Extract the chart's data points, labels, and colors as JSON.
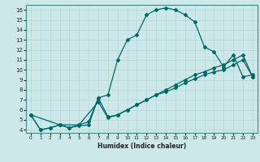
{
  "xlabel": "Humidex (Indice chaleur)",
  "xlim": [
    -0.5,
    23.5
  ],
  "ylim": [
    3.7,
    16.5
  ],
  "yticks": [
    4,
    5,
    6,
    7,
    8,
    9,
    10,
    11,
    12,
    13,
    14,
    15,
    16
  ],
  "xticks": [
    0,
    1,
    2,
    3,
    4,
    5,
    6,
    7,
    8,
    9,
    10,
    11,
    12,
    13,
    14,
    15,
    16,
    17,
    18,
    19,
    20,
    21,
    22,
    23
  ],
  "bg_color": "#cde8e8",
  "line_color": "#006868",
  "grid_color": "#b8d8d8",
  "curve1_x": [
    0,
    1,
    2,
    3,
    4,
    5,
    6,
    7,
    8,
    9,
    10,
    11,
    12,
    13,
    14,
    15,
    16,
    17,
    18,
    19,
    20,
    21,
    22,
    23
  ],
  "curve1_y": [
    5.5,
    4.0,
    4.2,
    4.5,
    4.2,
    4.4,
    4.5,
    7.2,
    7.5,
    11.0,
    13.0,
    13.5,
    15.5,
    16.0,
    16.2,
    16.0,
    15.5,
    14.8,
    12.3,
    11.8,
    10.3,
    11.5,
    9.3,
    9.5
  ],
  "curve2_x": [
    0,
    3,
    5,
    7,
    8,
    9,
    10,
    11,
    12,
    13,
    14,
    15,
    16,
    17,
    18,
    19,
    20,
    21,
    22,
    23
  ],
  "curve2_y": [
    5.5,
    4.5,
    4.5,
    6.8,
    5.2,
    5.5,
    6.0,
    6.5,
    7.0,
    7.5,
    8.0,
    8.5,
    9.0,
    9.5,
    9.8,
    10.2,
    10.5,
    11.0,
    11.5,
    9.3
  ],
  "curve3_x": [
    0,
    1,
    2,
    3,
    4,
    5,
    6,
    7,
    8,
    9,
    10,
    11,
    12,
    13,
    14,
    15,
    16,
    17,
    18,
    19,
    20,
    21,
    22,
    23
  ],
  "curve3_y": [
    5.5,
    4.0,
    4.2,
    4.5,
    4.2,
    4.5,
    4.8,
    7.2,
    5.3,
    5.5,
    6.0,
    6.5,
    7.0,
    7.5,
    7.8,
    8.2,
    8.7,
    9.1,
    9.5,
    9.8,
    10.0,
    10.5,
    11.0,
    9.3
  ]
}
